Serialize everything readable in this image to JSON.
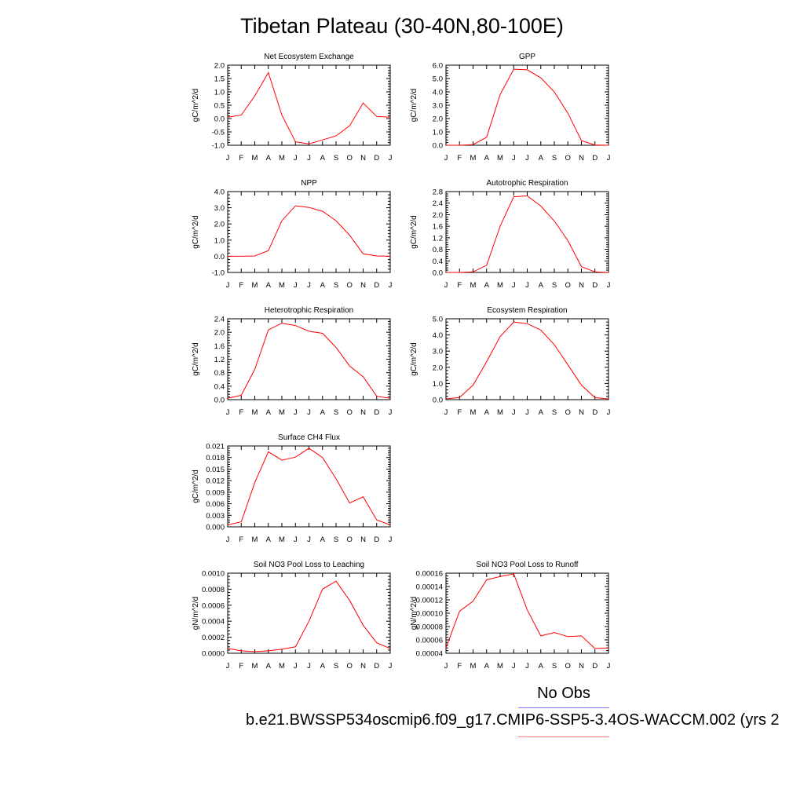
{
  "title": "Tibetan Plateau (30-40N,80-100E)",
  "legend": {
    "obs_label": "No Obs",
    "case_label": "b.e21.BWSSP534oscmip6.f09_g17.CMIP6-SSP5-3.4OS-WACCM.002 (yrs 2",
    "obs_color": "#7a7aff",
    "case_color": "#ff7a7a"
  },
  "line_color": "#ff0000",
  "months": [
    "J",
    "F",
    "M",
    "A",
    "M",
    "J",
    "J",
    "A",
    "S",
    "O",
    "N",
    "D",
    "J"
  ],
  "chart_data": [
    {
      "type": "line",
      "title": "Net Ecosystem Exchange",
      "ylabel": "gC/m^2/d",
      "ylim": [
        -1.0,
        2.0
      ],
      "yticks": [
        "-1.0",
        "-0.5",
        "0.0",
        "0.5",
        "1.0",
        "1.5",
        "2.0"
      ],
      "values": [
        0.05,
        0.13,
        0.85,
        1.72,
        0.13,
        -0.87,
        -0.95,
        -0.8,
        -0.65,
        -0.27,
        0.58,
        0.08,
        0.05
      ]
    },
    {
      "type": "line",
      "title": "GPP",
      "ylabel": "gC/m^2/d",
      "ylim": [
        0.0,
        6.0
      ],
      "yticks": [
        "0.0",
        "1.0",
        "2.0",
        "3.0",
        "4.0",
        "5.0",
        "6.0"
      ],
      "values": [
        0.0,
        0.0,
        0.05,
        0.6,
        3.8,
        5.7,
        5.65,
        5.05,
        4.0,
        2.4,
        0.35,
        0.02,
        0.0
      ]
    },
    {
      "type": "line",
      "title": "NPP",
      "ylabel": "gC/m^2/d",
      "ylim": [
        -1.0,
        4.0
      ],
      "yticks": [
        "-1.0",
        "0.0",
        "1.0",
        "2.0",
        "3.0",
        "4.0"
      ],
      "values": [
        0.0,
        0.0,
        0.02,
        0.35,
        2.2,
        3.12,
        3.02,
        2.78,
        2.2,
        1.3,
        0.15,
        0.02,
        0.0
      ]
    },
    {
      "type": "line",
      "title": "Autotrophic Respiration",
      "ylabel": "gC/m^2/d",
      "ylim": [
        0.0,
        2.8
      ],
      "yticks": [
        "0.0",
        "0.4",
        "0.8",
        "1.2",
        "1.6",
        "2.0",
        "2.4",
        "2.8"
      ],
      "values": [
        0.0,
        0.0,
        0.02,
        0.25,
        1.6,
        2.62,
        2.65,
        2.3,
        1.78,
        1.1,
        0.2,
        0.02,
        0.0
      ]
    },
    {
      "type": "line",
      "title": "Heterotrophic Respiration",
      "ylabel": "gC/m^2/d",
      "ylim": [
        0.0,
        2.4
      ],
      "yticks": [
        "0.0",
        "0.4",
        "0.8",
        "1.2",
        "1.6",
        "2.0",
        "2.4"
      ],
      "values": [
        0.04,
        0.13,
        0.9,
        2.07,
        2.27,
        2.2,
        2.03,
        1.97,
        1.55,
        1.0,
        0.68,
        0.1,
        0.04
      ]
    },
    {
      "type": "line",
      "title": "Ecosystem Respiration",
      "ylabel": "gC/m^2/d",
      "ylim": [
        0.0,
        5.0
      ],
      "yticks": [
        "0.0",
        "1.0",
        "2.0",
        "3.0",
        "4.0",
        "5.0"
      ],
      "values": [
        0.05,
        0.13,
        0.9,
        2.35,
        3.9,
        4.8,
        4.7,
        4.3,
        3.4,
        2.15,
        0.9,
        0.12,
        0.05
      ]
    },
    {
      "type": "line",
      "title": "Surface CH4 Flux",
      "ylabel": "gC/m^2/d",
      "ylim": [
        0.0,
        0.021
      ],
      "yticks": [
        "0.000",
        "0.003",
        "0.006",
        "0.009",
        "0.012",
        "0.015",
        "0.018",
        "0.021"
      ],
      "values": [
        0.0005,
        0.0013,
        0.0115,
        0.0195,
        0.0173,
        0.0181,
        0.0204,
        0.018,
        0.0125,
        0.0062,
        0.0078,
        0.0018,
        0.0005
      ]
    },
    {
      "type": "line",
      "title": "Soil NO3 Pool Loss to Leaching",
      "ylabel": "gN/m^2/d",
      "ylim": [
        0.0,
        0.001
      ],
      "yticks": [
        "0.0000",
        "0.0002",
        "0.0004",
        "0.0006",
        "0.0008",
        "0.0010"
      ],
      "values": [
        6e-05,
        3e-05,
        2e-05,
        3e-05,
        5e-05,
        8e-05,
        0.0004,
        0.0008,
        0.0009,
        0.00066,
        0.00035,
        0.00013,
        6e-05
      ]
    },
    {
      "type": "line",
      "title": "Soil NO3 Pool Loss to Runoff",
      "ylabel": "gN/m^2/d",
      "ylim": [
        4e-05,
        0.00016
      ],
      "yticks": [
        "0.00004",
        "0.00006",
        "0.00008",
        "0.00010",
        "0.00012",
        "0.00014",
        "0.00016"
      ],
      "values": [
        4.8e-05,
        0.000103,
        0.000118,
        0.00015,
        0.000155,
        0.000159,
        0.000105,
        6.6e-05,
        7.1e-05,
        6.5e-05,
        6.6e-05,
        4.7e-05,
        4.8e-05
      ]
    }
  ]
}
